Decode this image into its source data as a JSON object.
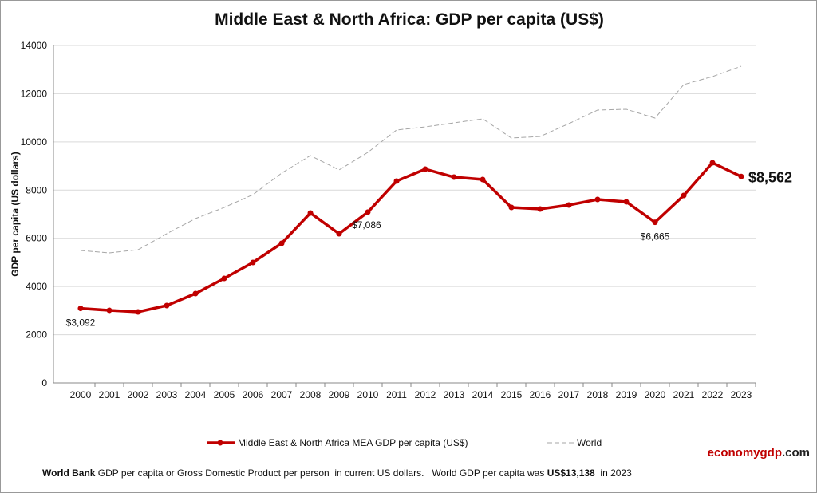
{
  "chart_data": {
    "type": "line",
    "title": "Middle East & North Africa: GDP per capita (US$)",
    "ylabel": "GDP per capita (US dollars)",
    "xlabel": "",
    "ylim": [
      0,
      14000
    ],
    "yticks": [
      0,
      2000,
      4000,
      6000,
      8000,
      10000,
      12000,
      14000
    ],
    "grid": true,
    "legend_position": "bottom",
    "categories": [
      "2000",
      "2001",
      "2002",
      "2003",
      "2004",
      "2005",
      "2006",
      "2007",
      "2008",
      "2009",
      "2010",
      "2011",
      "2012",
      "2013",
      "2014",
      "2015",
      "2016",
      "2017",
      "2018",
      "2019",
      "2020",
      "2021",
      "2022",
      "2023"
    ],
    "series": [
      {
        "name": "Middle East & North Africa MEA GDP per capita (US$)",
        "color": "#c00000",
        "style": "solid-markers",
        "values": [
          3092,
          3010,
          2946,
          3210,
          3707,
          4336,
          4998,
          5792,
          7050,
          6189,
          7086,
          8374,
          8870,
          8539,
          8440,
          7281,
          7215,
          7380,
          7612,
          7513,
          6665,
          7778,
          9135,
          8562
        ]
      },
      {
        "name": "World",
        "color": "#a6a6a6",
        "style": "dashed",
        "values": [
          5494,
          5395,
          5527,
          6190,
          6818,
          7281,
          7811,
          8705,
          9433,
          8837,
          9565,
          10492,
          10624,
          10790,
          10955,
          10161,
          10227,
          10757,
          11320,
          11353,
          10988,
          12378,
          12710,
          13138
        ]
      }
    ],
    "annotations": [
      {
        "year": "2000",
        "text": "$3,092"
      },
      {
        "year": "2010",
        "text": "$7,086"
      },
      {
        "year": "2020",
        "text": "$6,665"
      },
      {
        "year": "2023",
        "text": "$8,562"
      }
    ]
  },
  "footer": {
    "source_bold": "World Bank",
    "text": " GDP per capita or Gross Domestic Product per person  in current US dollars.   World GDP per capita was ",
    "value_bold": "US$13,138",
    "suffix": "  in 2023"
  },
  "brand": {
    "part1": "economygdp",
    "part2": ".com"
  }
}
